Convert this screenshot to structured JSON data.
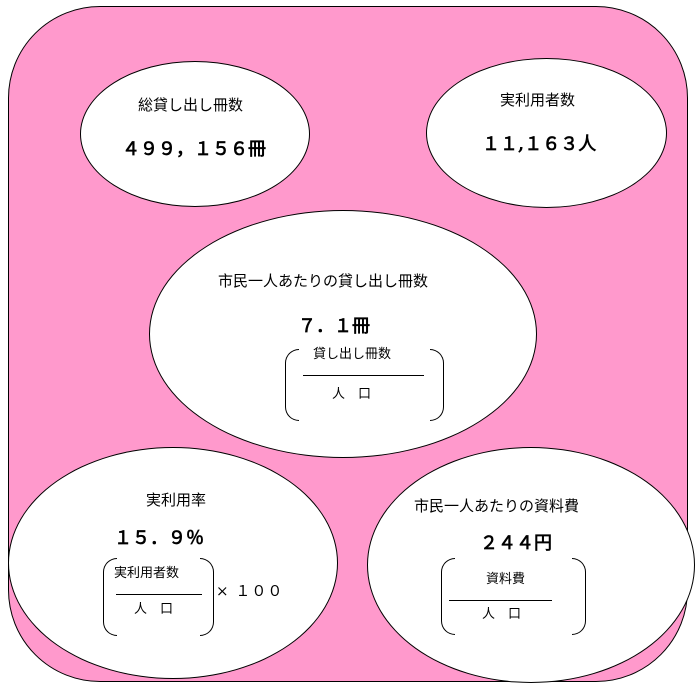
{
  "total_loans": {
    "label": "総貸し出し冊数",
    "value": "４９９，１５６冊"
  },
  "actual_users": {
    "label": "実利用者数",
    "value": "１１,１６３人"
  },
  "loans_per_citizen": {
    "label": "市民一人あたりの貸し出し冊数",
    "value": "７．１冊",
    "numerator": "貸し出し冊数",
    "denominator": "人　口"
  },
  "usage_rate": {
    "label": "実利用率",
    "value": "１５．９％",
    "numerator": "実利用者数",
    "denominator": "人　口",
    "multiplier": "× １００"
  },
  "material_cost_per_citizen": {
    "label": "市民一人あたりの資料費",
    "value": "２４４円",
    "numerator": "資料費",
    "denominator": "人　口"
  }
}
